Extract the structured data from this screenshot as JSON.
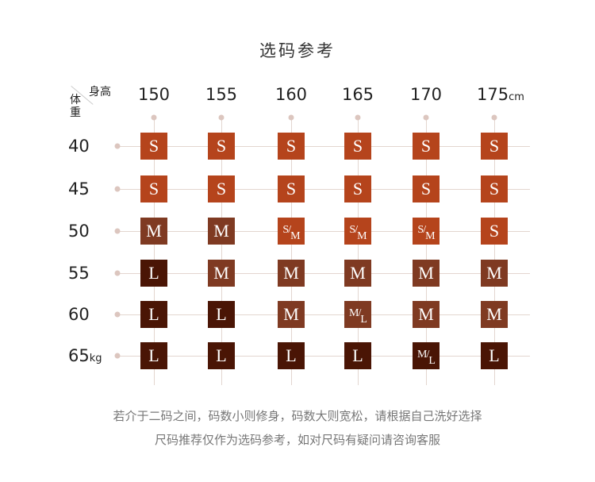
{
  "title": "选码参考",
  "corner": {
    "height_label": "身高",
    "weight_label": "体重"
  },
  "chart_data": {
    "type": "table",
    "columns": [
      "150",
      "155",
      "160",
      "165",
      "170",
      "175"
    ],
    "column_unit": "cm",
    "rows": [
      "40",
      "45",
      "50",
      "55",
      "60",
      "65"
    ],
    "row_unit": "kg",
    "cells": [
      [
        "S",
        "S",
        "S",
        "S",
        "S",
        "S"
      ],
      [
        "S",
        "S",
        "S",
        "S",
        "S",
        "S"
      ],
      [
        "M",
        "M",
        "S/M",
        "S/M",
        "S/M",
        "S"
      ],
      [
        "L",
        "M",
        "M",
        "M",
        "M",
        "M"
      ],
      [
        "L",
        "L",
        "M",
        "M/L",
        "M",
        "M"
      ],
      [
        "L",
        "L",
        "L",
        "L",
        "M/L",
        "L"
      ]
    ]
  },
  "colors": {
    "S": "#b5441c",
    "M": "#7f3a22",
    "L": "#4a1505",
    "grid": "#e3d6cf"
  },
  "notes": [
    "若介于二码之间，码数小则修身，码数大则宽松，请根据自己洗好选择",
    "尺码推荐仅作为选码参考，如对尺码有疑问请咨询客服"
  ]
}
